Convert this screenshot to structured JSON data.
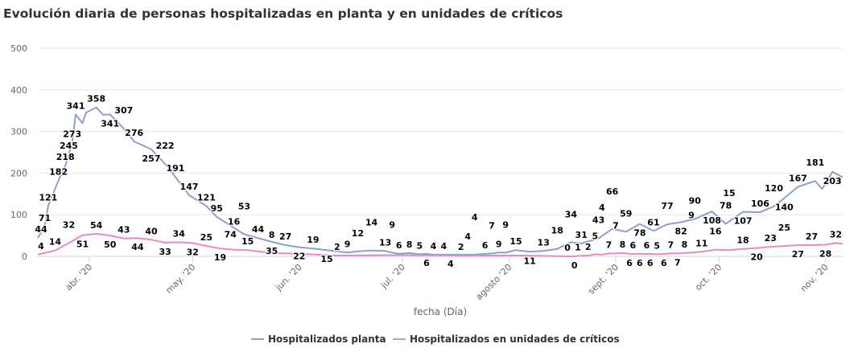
{
  "chart_data": {
    "type": "line",
    "title": "Evolución diaria de personas hospitalizadas en planta y en unidades de críticos",
    "xlabel": "fecha (Día)",
    "ylabel": "",
    "xlim": [
      "2020-03-17",
      "2020-11-06"
    ],
    "ylim": [
      0,
      500
    ],
    "yticks": [
      0,
      100,
      200,
      300,
      400,
      500
    ],
    "xticks": [
      {
        "date": "2020-04-01",
        "label": "abr. '20"
      },
      {
        "date": "2020-05-01",
        "label": "may. '20"
      },
      {
        "date": "2020-06-01",
        "label": "jun. '20"
      },
      {
        "date": "2020-07-01",
        "label": "jul. '20"
      },
      {
        "date": "2020-08-01",
        "label": "agosto '20"
      },
      {
        "date": "2020-09-01",
        "label": "sept. '20"
      },
      {
        "date": "2020-10-01",
        "label": "oct. '20"
      },
      {
        "date": "2020-11-01",
        "label": "nov. '20"
      }
    ],
    "grid": true,
    "legend_position": "bottom",
    "series": [
      {
        "name": "Hospitalizados planta",
        "color": "#8da0cb",
        "points": [
          {
            "d": "2020-03-17",
            "v": 44,
            "l": true
          },
          {
            "d": "2020-03-19",
            "v": 71,
            "l": true
          },
          {
            "d": "2020-03-20",
            "v": 121,
            "l": true
          },
          {
            "d": "2020-03-23",
            "v": 182,
            "l": true
          },
          {
            "d": "2020-03-25",
            "v": 218,
            "l": true
          },
          {
            "d": "2020-03-26",
            "v": 245,
            "l": true
          },
          {
            "d": "2020-03-27",
            "v": 273,
            "l": true
          },
          {
            "d": "2020-03-28",
            "v": 341,
            "l": true
          },
          {
            "d": "2020-03-30",
            "v": 320,
            "l": false
          },
          {
            "d": "2020-03-31",
            "v": 345,
            "l": false
          },
          {
            "d": "2020-04-03",
            "v": 358,
            "l": true
          },
          {
            "d": "2020-04-05",
            "v": 340,
            "l": false
          },
          {
            "d": "2020-04-07",
            "v": 341,
            "l": true
          },
          {
            "d": "2020-04-11",
            "v": 307,
            "l": true
          },
          {
            "d": "2020-04-14",
            "v": 276,
            "l": true
          },
          {
            "d": "2020-04-19",
            "v": 257,
            "l": true
          },
          {
            "d": "2020-04-23",
            "v": 222,
            "l": true
          },
          {
            "d": "2020-04-26",
            "v": 191,
            "l": true
          },
          {
            "d": "2020-04-30",
            "v": 147,
            "l": true
          },
          {
            "d": "2020-05-05",
            "v": 121,
            "l": true
          },
          {
            "d": "2020-05-08",
            "v": 95,
            "l": true
          },
          {
            "d": "2020-05-12",
            "v": 74,
            "l": true
          },
          {
            "d": "2020-05-16",
            "v": 53,
            "l": true
          },
          {
            "d": "2020-05-20",
            "v": 44,
            "l": true
          },
          {
            "d": "2020-05-24",
            "v": 35,
            "l": true
          },
          {
            "d": "2020-05-28",
            "v": 27,
            "l": true
          },
          {
            "d": "2020-06-01",
            "v": 22,
            "l": true
          },
          {
            "d": "2020-06-05",
            "v": 19,
            "l": true
          },
          {
            "d": "2020-06-09",
            "v": 15,
            "l": true
          },
          {
            "d": "2020-06-15",
            "v": 9,
            "l": true
          },
          {
            "d": "2020-06-18",
            "v": 12,
            "l": true
          },
          {
            "d": "2020-06-22",
            "v": 14,
            "l": true
          },
          {
            "d": "2020-06-26",
            "v": 13,
            "l": true
          },
          {
            "d": "2020-06-28",
            "v": 9,
            "l": true
          },
          {
            "d": "2020-06-30",
            "v": 6,
            "l": true
          },
          {
            "d": "2020-07-03",
            "v": 8,
            "l": true
          },
          {
            "d": "2020-07-06",
            "v": 5,
            "l": true
          },
          {
            "d": "2020-07-08",
            "v": 6,
            "l": true
          },
          {
            "d": "2020-07-10",
            "v": 4,
            "l": true
          },
          {
            "d": "2020-07-13",
            "v": 4,
            "l": true
          },
          {
            "d": "2020-07-15",
            "v": 4,
            "l": true
          },
          {
            "d": "2020-07-20",
            "v": 4,
            "l": true
          },
          {
            "d": "2020-07-22",
            "v": 4,
            "l": true
          },
          {
            "d": "2020-07-25",
            "v": 6,
            "l": true
          },
          {
            "d": "2020-07-27",
            "v": 7,
            "l": true
          },
          {
            "d": "2020-07-29",
            "v": 9,
            "l": true
          },
          {
            "d": "2020-07-31",
            "v": 9,
            "l": true
          },
          {
            "d": "2020-08-03",
            "v": 15,
            "l": true
          },
          {
            "d": "2020-08-07",
            "v": 11,
            "l": true
          },
          {
            "d": "2020-08-11",
            "v": 13,
            "l": true
          },
          {
            "d": "2020-08-15",
            "v": 18,
            "l": true
          },
          {
            "d": "2020-08-19",
            "v": 34,
            "l": true
          },
          {
            "d": "2020-08-22",
            "v": 31,
            "l": true
          },
          {
            "d": "2020-08-27",
            "v": 43,
            "l": true
          },
          {
            "d": "2020-08-31",
            "v": 66,
            "l": true
          },
          {
            "d": "2020-09-04",
            "v": 59,
            "l": true
          },
          {
            "d": "2020-09-08",
            "v": 78,
            "l": true
          },
          {
            "d": "2020-09-12",
            "v": 61,
            "l": true
          },
          {
            "d": "2020-09-16",
            "v": 77,
            "l": true
          },
          {
            "d": "2020-09-20",
            "v": 82,
            "l": true
          },
          {
            "d": "2020-09-24",
            "v": 90,
            "l": true
          },
          {
            "d": "2020-09-29",
            "v": 108,
            "l": true
          },
          {
            "d": "2020-10-03",
            "v": 78,
            "l": true
          },
          {
            "d": "2020-10-08",
            "v": 107,
            "l": true
          },
          {
            "d": "2020-10-13",
            "v": 106,
            "l": true
          },
          {
            "d": "2020-10-17",
            "v": 120,
            "l": true
          },
          {
            "d": "2020-10-20",
            "v": 140,
            "l": true
          },
          {
            "d": "2020-10-24",
            "v": 167,
            "l": true
          },
          {
            "d": "2020-10-29",
            "v": 181,
            "l": true
          },
          {
            "d": "2020-10-31",
            "v": 162,
            "l": false
          },
          {
            "d": "2020-11-03",
            "v": 203,
            "l": true
          },
          {
            "d": "2020-11-06",
            "v": 190,
            "l": false
          }
        ]
      },
      {
        "name": "Hospitalizados en unidades de críticos",
        "color": "#e78ac3",
        "points": [
          {
            "d": "2020-03-17",
            "v": 4,
            "l": true
          },
          {
            "d": "2020-03-22",
            "v": 14,
            "l": true
          },
          {
            "d": "2020-03-26",
            "v": 32,
            "l": true
          },
          {
            "d": "2020-03-30",
            "v": 51,
            "l": true
          },
          {
            "d": "2020-04-03",
            "v": 54,
            "l": true
          },
          {
            "d": "2020-04-07",
            "v": 50,
            "l": true
          },
          {
            "d": "2020-04-11",
            "v": 43,
            "l": true
          },
          {
            "d": "2020-04-15",
            "v": 44,
            "l": true
          },
          {
            "d": "2020-04-19",
            "v": 40,
            "l": true
          },
          {
            "d": "2020-04-23",
            "v": 33,
            "l": true
          },
          {
            "d": "2020-04-27",
            "v": 34,
            "l": true
          },
          {
            "d": "2020-05-01",
            "v": 32,
            "l": true
          },
          {
            "d": "2020-05-05",
            "v": 25,
            "l": true
          },
          {
            "d": "2020-05-09",
            "v": 19,
            "l": true
          },
          {
            "d": "2020-05-13",
            "v": 16,
            "l": true
          },
          {
            "d": "2020-05-17",
            "v": 15,
            "l": true
          },
          {
            "d": "2020-05-24",
            "v": 8,
            "l": true
          },
          {
            "d": "2020-06-01",
            "v": 6,
            "l": false
          },
          {
            "d": "2020-06-12",
            "v": 2,
            "l": true
          },
          {
            "d": "2020-07-01",
            "v": 3,
            "l": false
          },
          {
            "d": "2020-07-18",
            "v": 2,
            "l": true
          },
          {
            "d": "2020-08-05",
            "v": 2,
            "l": false
          },
          {
            "d": "2020-08-18",
            "v": 0,
            "l": true
          },
          {
            "d": "2020-08-20",
            "v": 0,
            "l": true
          },
          {
            "d": "2020-08-21",
            "v": 1,
            "l": true
          },
          {
            "d": "2020-08-24",
            "v": 2,
            "l": true
          },
          {
            "d": "2020-08-26",
            "v": 5,
            "l": true
          },
          {
            "d": "2020-08-28",
            "v": 4,
            "l": true
          },
          {
            "d": "2020-08-30",
            "v": 7,
            "l": true
          },
          {
            "d": "2020-09-01",
            "v": 7,
            "l": true
          },
          {
            "d": "2020-09-03",
            "v": 8,
            "l": true
          },
          {
            "d": "2020-09-05",
            "v": 6,
            "l": true
          },
          {
            "d": "2020-09-06",
            "v": 6,
            "l": true
          },
          {
            "d": "2020-09-08",
            "v": 6,
            "l": true
          },
          {
            "d": "2020-09-10",
            "v": 6,
            "l": true
          },
          {
            "d": "2020-09-11",
            "v": 6,
            "l": true
          },
          {
            "d": "2020-09-13",
            "v": 5,
            "l": true
          },
          {
            "d": "2020-09-15",
            "v": 6,
            "l": true
          },
          {
            "d": "2020-09-17",
            "v": 7,
            "l": true
          },
          {
            "d": "2020-09-19",
            "v": 7,
            "l": true
          },
          {
            "d": "2020-09-21",
            "v": 8,
            "l": true
          },
          {
            "d": "2020-09-23",
            "v": 9,
            "l": true
          },
          {
            "d": "2020-09-26",
            "v": 11,
            "l": true
          },
          {
            "d": "2020-09-30",
            "v": 16,
            "l": true
          },
          {
            "d": "2020-10-04",
            "v": 15,
            "l": true
          },
          {
            "d": "2020-10-08",
            "v": 18,
            "l": true
          },
          {
            "d": "2020-10-12",
            "v": 20,
            "l": true
          },
          {
            "d": "2020-10-16",
            "v": 23,
            "l": true
          },
          {
            "d": "2020-10-20",
            "v": 25,
            "l": true
          },
          {
            "d": "2020-10-24",
            "v": 27,
            "l": true
          },
          {
            "d": "2020-10-28",
            "v": 27,
            "l": true
          },
          {
            "d": "2020-11-01",
            "v": 28,
            "l": true
          },
          {
            "d": "2020-11-04",
            "v": 32,
            "l": true
          },
          {
            "d": "2020-11-06",
            "v": 30,
            "l": false
          }
        ]
      }
    ]
  }
}
